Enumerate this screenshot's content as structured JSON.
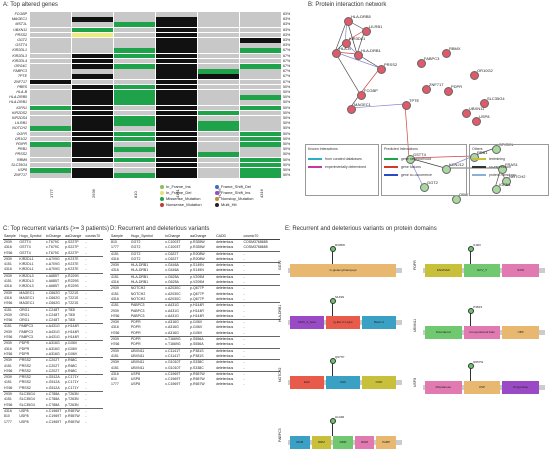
{
  "panels": {
    "a": "A: Top altered genes",
    "b": "B: Protein interaction network",
    "c": "C: Top recurrent variants (>= 3 patients)",
    "d": "D: Recurrent and deleterious variants",
    "e": "E: Recurrent and deleterious variants on protein domains"
  },
  "heatmap": {
    "genes": [
      "FCGBP",
      "MAGEC1",
      "MST1L",
      "UBXN11",
      "PRSS2",
      "GGT2",
      "GSTT4",
      "KIR2DL1",
      "KIR2DL3",
      "KIR2DL4",
      "ORG4C",
      "FABPC3",
      "TPTE",
      "ZNF717",
      "PBRS",
      "HLA-B",
      "HLA-DRB5",
      "HLA-DRB1",
      "IGFN1",
      "KIR2DS2",
      "KIR2DS4",
      "LILRB1",
      "NOTCH2",
      "OGFR",
      "OR1G2",
      "PDIPR",
      "PRB1",
      "PRSS2",
      "RBM9",
      "SLC35G4",
      "USP8",
      "ZNF717"
    ],
    "pct": [
      "83%",
      "83%",
      "83%",
      "83%",
      "83%",
      "83%",
      "83%",
      "67%",
      "67%",
      "67%",
      "67%",
      "67%",
      "67%",
      "67%",
      "50%",
      "50%",
      "50%",
      "50%",
      "50%",
      "50%",
      "50%",
      "50%",
      "50%",
      "50%",
      "50%",
      "50%",
      "50%",
      "50%",
      "50%",
      "50%",
      "50%",
      "50%"
    ],
    "samples": [
      "1777",
      "2939",
      "810",
      "4151",
      "H766",
      "4316"
    ],
    "grid": [
      "gggggg",
      "gbgbgg",
      "ggxbgg",
      "gxgbgg",
      "gygbgg",
      "gggbgb",
      "gggbgg",
      "ggxbgx",
      "gbxbgg",
      "gbgbgg",
      "gbxbgx",
      "gggbxg",
      "gbgbbg",
      "bggbgg",
      "gbxbgg",
      "gbxbgg",
      "gbxbgx",
      "gbxbgg",
      "xbgbgx",
      "gbgbxg",
      "gbxbgg",
      "gbxbxg",
      "xbgbxg",
      "gbxbgx",
      "gbxbgx",
      "xbgbgx",
      "gbxbgg",
      "gbgbxg",
      "gbxbgx",
      "gggbgx",
      "xbgbgx",
      "gbxbgx"
    ],
    "legend": [
      {
        "label": "In_Frame_Ins",
        "color": "#8fbc5a"
      },
      {
        "label": "In_Frame_Del",
        "color": "#e8e070"
      },
      {
        "label": "Missense_Mutation",
        "color": "#1fa34a"
      },
      {
        "label": "Nonsense_Mutation",
        "color": "#c43a3a"
      },
      {
        "label": "Frame_Shift_Del",
        "color": "#3a6ec4"
      },
      {
        "label": "Frame_Shift_Ins",
        "color": "#9a4ac4"
      },
      {
        "label": "Nonstop_Mutation",
        "color": "#c48a3a"
      },
      {
        "label": "Multi_Hit",
        "color": "#222222"
      }
    ]
  },
  "network": {
    "nodes": [
      {
        "label": "HLA-DRB5",
        "color": "#e05a6a"
      },
      {
        "label": "LILRB1",
        "color": "#e05a6a"
      },
      {
        "label": "KIR3DL1",
        "color": "#e05a6a"
      },
      {
        "label": "HLA-DRB1",
        "color": "#e05a6a"
      },
      {
        "label": "HLA-B",
        "color": "#e05a6a"
      },
      {
        "label": "PRSS2",
        "color": "#e05a6a"
      },
      {
        "label": "FCGBP",
        "color": "#e05a6a"
      },
      {
        "label": "MAGEC1",
        "color": "#e05a6a"
      },
      {
        "label": "TPTE",
        "color": "#e05a6a"
      },
      {
        "label": "RBMX",
        "color": "#e05a6a"
      },
      {
        "label": "FABPC3",
        "color": "#e05a6a"
      },
      {
        "label": "ZNF717",
        "color": "#e05a6a"
      },
      {
        "label": "OR10G2",
        "color": "#e05a6a"
      },
      {
        "label": "PDPR",
        "color": "#e05a6a"
      },
      {
        "label": "SLC35G4",
        "color": "#e05a6a"
      },
      {
        "label": "USP8",
        "color": "#e05a6a"
      },
      {
        "label": "UBXN11",
        "color": "#e05a6a"
      },
      {
        "label": "GSTT4",
        "color": "#a8d8a0"
      },
      {
        "label": "PRB1",
        "color": "#a8d8a0"
      },
      {
        "label": "SPIRE1",
        "color": "#a8d8a0"
      },
      {
        "label": "KCNJ12",
        "color": "#a8d8a0"
      },
      {
        "label": "FRAS1",
        "color": "#a8d8a0"
      },
      {
        "label": "NOTCH2",
        "color": "#a8d8a0"
      },
      {
        "label": "IGFN1",
        "color": "#a8d8a0"
      },
      {
        "label": "ORG1",
        "color": "#a8d8a0"
      },
      {
        "label": "GGT2",
        "color": "#a8d8a0"
      }
    ],
    "legend": {
      "known_title": "Known Interactions",
      "known": [
        "from curated databases",
        "experimentally determined"
      ],
      "predicted_title": "Predicted Interactions",
      "predicted": [
        "gene neighborhood",
        "gene fusions",
        "gene co-occurrence"
      ],
      "others_title": "Others",
      "others": [
        "textmining",
        "co-expression",
        "protein homology"
      ]
    }
  },
  "table_c": {
    "headers": [
      "Sample",
      "Hugo_Symbol",
      "txChange",
      "aaChange",
      "cosmic70"
    ],
    "rows": [
      [
        "2939",
        "GSTT4",
        "c.T679C",
        "p.S227P",
        "-"
      ],
      [
        "4316",
        "GSTT4",
        "c.T679C",
        "p.S227P",
        "-"
      ],
      [
        "H766",
        "GSTT4",
        "c.T679C",
        "p.S227P",
        "-"
      ],
      [
        "2939",
        "KIR2DL1",
        "c.A709G",
        "p.K237E",
        "-"
      ],
      [
        "4151",
        "KIR2DL1",
        "c.A709G",
        "p.K237E",
        "-"
      ],
      [
        "4316",
        "KIR2DL1",
        "c.A709G",
        "p.K237E",
        "-"
      ],
      [
        "2939",
        "KIR2DL3",
        "c.A685T",
        "p.R229S",
        "-"
      ],
      [
        "4151",
        "KIR2DL3",
        "c.A685T",
        "p.R229S",
        "-"
      ],
      [
        "4316",
        "KIR2DL3",
        "c.A685T",
        "p.R229S",
        "-"
      ],
      [
        "2939",
        "MAGEC1",
        "c.C662G",
        "p.T221S",
        "-"
      ],
      [
        "4316",
        "MAGEC1",
        "c.C662G",
        "p.T221S",
        "-"
      ],
      [
        "H766",
        "MAGEC1",
        "c.C662G",
        "p.T221S",
        "-"
      ],
      [
        "4151",
        "ORG1",
        "c.C248T",
        "p.T83I",
        "-"
      ],
      [
        "2939",
        "ORG1",
        "c.C248T",
        "p.T83I",
        "-"
      ],
      [
        "H766",
        "ORG1",
        "c.C248T",
        "p.T83I",
        "-"
      ],
      [
        "4151",
        "PABPC3",
        "c.A431G",
        "p.H144R",
        "-"
      ],
      [
        "2939",
        "PABPC3",
        "c.A431G",
        "p.H144R",
        "-"
      ],
      [
        "H766",
        "PABPC3",
        "c.A431G",
        "p.H144R",
        "-"
      ],
      [
        "2939",
        "PDPR",
        "c.A316G",
        "p.I106V",
        "-"
      ],
      [
        "4316",
        "PDPR",
        "c.A316G",
        "p.I106V",
        "-"
      ],
      [
        "H766",
        "PDPR",
        "c.A316G",
        "p.I106V",
        "-"
      ],
      [
        "2939",
        "PRSS2",
        "c.C202T",
        "p.R68C",
        "-"
      ],
      [
        "4151",
        "PRSS2",
        "c.C202T",
        "p.R68C",
        "-"
      ],
      [
        "H766",
        "PRSS2",
        "c.C202T",
        "p.R68C",
        "-"
      ],
      [
        "2939",
        "PRSS2",
        "c.G512A",
        "p.C171Y",
        "-"
      ],
      [
        "4151",
        "PRSS2",
        "c.G512A",
        "p.C171Y",
        "-"
      ],
      [
        "H766",
        "PRSS2",
        "c.G512A",
        "p.C171Y",
        "-"
      ],
      [
        "2939",
        "SLC35G4",
        "c.C788A",
        "p.T263N",
        "-"
      ],
      [
        "4151",
        "SLC35G4",
        "c.C788A",
        "p.T263N",
        "-"
      ],
      [
        "H766",
        "SLC35G4",
        "c.C788A",
        "p.T263N",
        "-"
      ],
      [
        "4316",
        "USP8",
        "c.C1969T",
        "p.R657W",
        "-"
      ],
      [
        "810",
        "USP8",
        "c.C1969T",
        "p.R657W",
        "-"
      ],
      [
        "1777",
        "USP8",
        "c.C1969T",
        "p.R657W",
        "-"
      ]
    ],
    "group_starts": [
      3,
      6,
      9,
      12,
      15,
      18,
      21,
      24,
      27,
      30
    ]
  },
  "table_d": {
    "headers": [
      "Sample",
      "Hugo_Symbol",
      "txChange",
      "aaChange",
      "CADD",
      "cosmic70"
    ],
    "rows": [
      [
        "810",
        "GGT2",
        "c.C1003T",
        "p.R335W",
        "deleterious",
        "COSM3768685"
      ],
      [
        "1777",
        "GGT2",
        "c.C1003T",
        "p.R335W",
        "deleterious",
        "COSM3768685"
      ],
      [
        "4151",
        "GGT2",
        "c.C622T",
        "p.R208W",
        "deleterious",
        "-"
      ],
      [
        "4316",
        "GGT2",
        "c.C622T",
        "p.R208W",
        "deleterious",
        "-"
      ],
      [
        "2939",
        "HLA-DRB1",
        "c.G446A",
        "p.S149N",
        "deleterious",
        "-"
      ],
      [
        "4316",
        "HLA-DRB1",
        "c.G446A",
        "p.S149N",
        "deleterious",
        "-"
      ],
      [
        "4151",
        "HLA-DRB1",
        "c.G625A",
        "p.V209M",
        "deleterious",
        "-"
      ],
      [
        "4316",
        "HLA-DRB1",
        "c.G625A",
        "p.V209M",
        "deleterious",
        "-"
      ],
      [
        "2939",
        "NOTCH2",
        "c.A2030C",
        "p.Q677P",
        "deleterious",
        "-"
      ],
      [
        "4151",
        "NOTCH2",
        "c.A2030C",
        "p.Q677P",
        "deleterious",
        "-"
      ],
      [
        "4316",
        "NOTCH2",
        "c.A2030C",
        "p.Q677P",
        "deleterious",
        "-"
      ],
      [
        "4151",
        "PABPC3",
        "c.A431G",
        "p.H144R",
        "deleterious",
        "-"
      ],
      [
        "2939",
        "PABPC3",
        "c.A431G",
        "p.H144R",
        "deleterious",
        "-"
      ],
      [
        "H766",
        "PABPC3",
        "c.A431G",
        "p.H144R",
        "deleterious",
        "-"
      ],
      [
        "2939",
        "PDPR",
        "c.A316G",
        "p.I106V",
        "deleterious",
        "-"
      ],
      [
        "4316",
        "PDPR",
        "c.A316G",
        "p.I106V",
        "deleterious",
        "-"
      ],
      [
        "H766",
        "PDPR",
        "c.A316G",
        "p.I106V",
        "deleterious",
        "-"
      ],
      [
        "2939",
        "PDPR",
        "c.T1669G",
        "p.S556A",
        "deleterious",
        "-"
      ],
      [
        "H766",
        "PDPR",
        "c.T1669G",
        "p.S556A",
        "deleterious",
        "-"
      ],
      [
        "2939",
        "UBXN11",
        "c.C1141T",
        "p.P381S",
        "deleterious",
        "-"
      ],
      [
        "4151",
        "UBXN11",
        "c.C1141T",
        "p.P381S",
        "deleterious",
        "-"
      ],
      [
        "2939",
        "UBXN11",
        "c.G1010T",
        "p.S338C",
        "deleterious",
        "-"
      ],
      [
        "4151",
        "UBXN11",
        "c.G1010T",
        "p.S338C",
        "deleterious",
        "-"
      ],
      [
        "4316",
        "USP8",
        "c.C1969T",
        "p.R657W",
        "deleterious",
        "-"
      ],
      [
        "810",
        "USP8",
        "c.C1969T",
        "p.R657W",
        "deleterious",
        "-"
      ],
      [
        "1777",
        "USP8",
        "c.C1969T",
        "p.R657W",
        "deleterious",
        "-"
      ]
    ],
    "group_starts": [
      2,
      4,
      6,
      8,
      11,
      14,
      17,
      19,
      21,
      23
    ]
  },
  "domains": {
    "tracks": [
      {
        "gene": "GGT2",
        "domains": [
          "G-glutamyltranspept"
        ],
        "var": "R335W"
      },
      {
        "gene": "HLA-DRB1",
        "domains": [
          "MHC_II_beta",
          "Ig-like C1-type",
          "Basic-2"
        ],
        "var": "S149N"
      },
      {
        "gene": "NOTCH2",
        "domains": [
          "EGF",
          "ANK",
          "NOD"
        ],
        "var": "Q677P"
      },
      {
        "gene": "PABPC3",
        "domains": [
          "RRM",
          "RRM",
          "RRM",
          "RRM",
          "PABP"
        ],
        "var": "H144R"
      },
      {
        "gene": "PDPR",
        "domains": [
          "FAD/NAD",
          "GCV_T",
          "SXW"
        ],
        "var": "I106V"
      },
      {
        "gene": "UBXN11",
        "domains": [
          "Disordered",
          "Compositional bias",
          "UBX"
        ],
        "var": "P381S"
      },
      {
        "gene": "USP8",
        "domains": [
          "Rhodanese",
          "USP",
          "Polyproline"
        ],
        "var": "R657W"
      }
    ]
  }
}
